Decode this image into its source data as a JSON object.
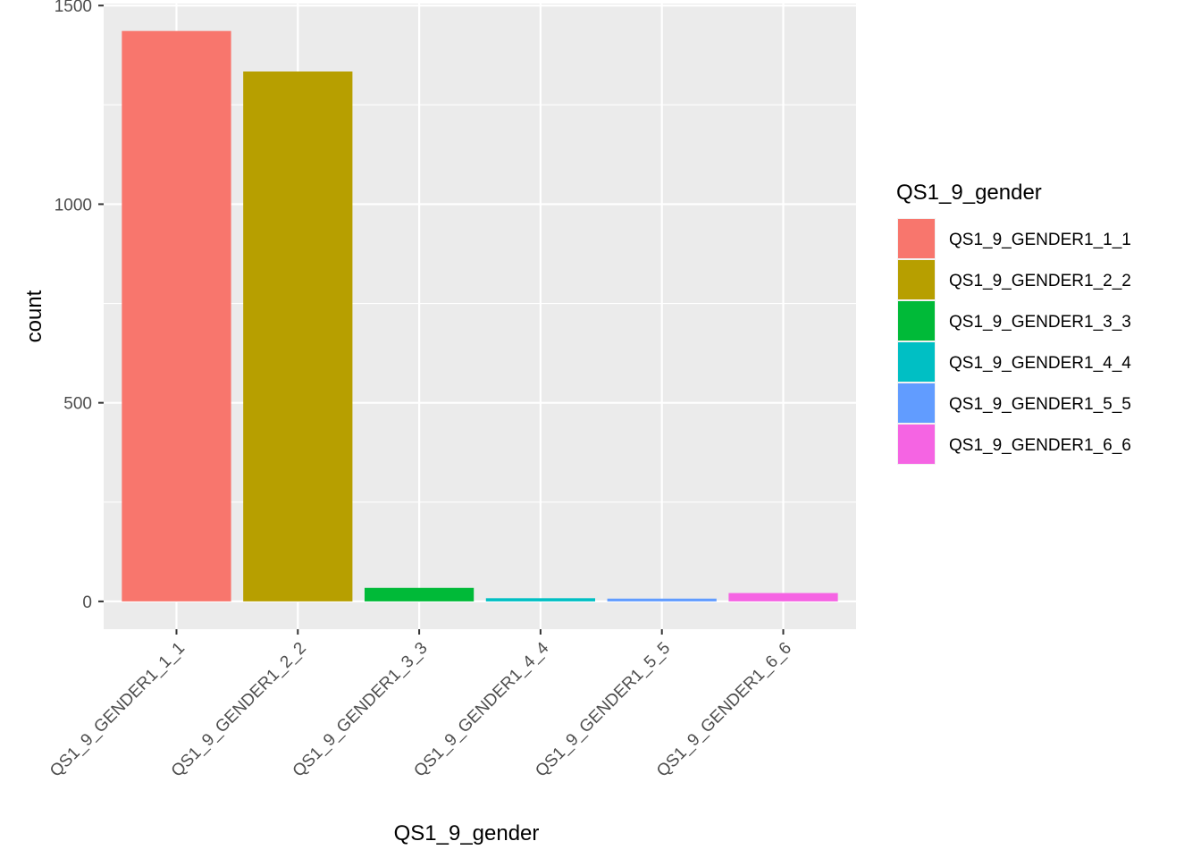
{
  "chart_data": {
    "type": "bar",
    "categories": [
      "QS1_9_GENDER1_1_1",
      "QS1_9_GENDER1_2_2",
      "QS1_9_GENDER1_3_3",
      "QS1_9_GENDER1_4_4",
      "QS1_9_GENDER1_5_5",
      "QS1_9_GENDER1_6_6"
    ],
    "values": [
      1436,
      1334,
      34,
      8,
      7,
      21
    ],
    "colors": [
      "#F8766D",
      "#B79F00",
      "#00BA38",
      "#00BFC4",
      "#619CFF",
      "#F564E3"
    ],
    "xlabel": "QS1_9_gender",
    "ylabel": "count",
    "ylim": [
      -70,
      1505
    ],
    "yticks": [
      0,
      500,
      1000,
      1500
    ],
    "yticks_minor": [
      250,
      750,
      1250
    ],
    "grid": true,
    "panel_background": "#EBEBEB",
    "grid_color": "#FFFFFF",
    "legend": {
      "title": "QS1_9_gender",
      "placement": "right",
      "entries": [
        "QS1_9_GENDER1_1_1",
        "QS1_9_GENDER1_2_2",
        "QS1_9_GENDER1_3_3",
        "QS1_9_GENDER1_4_4",
        "QS1_9_GENDER1_5_5",
        "QS1_9_GENDER1_6_6"
      ]
    }
  }
}
